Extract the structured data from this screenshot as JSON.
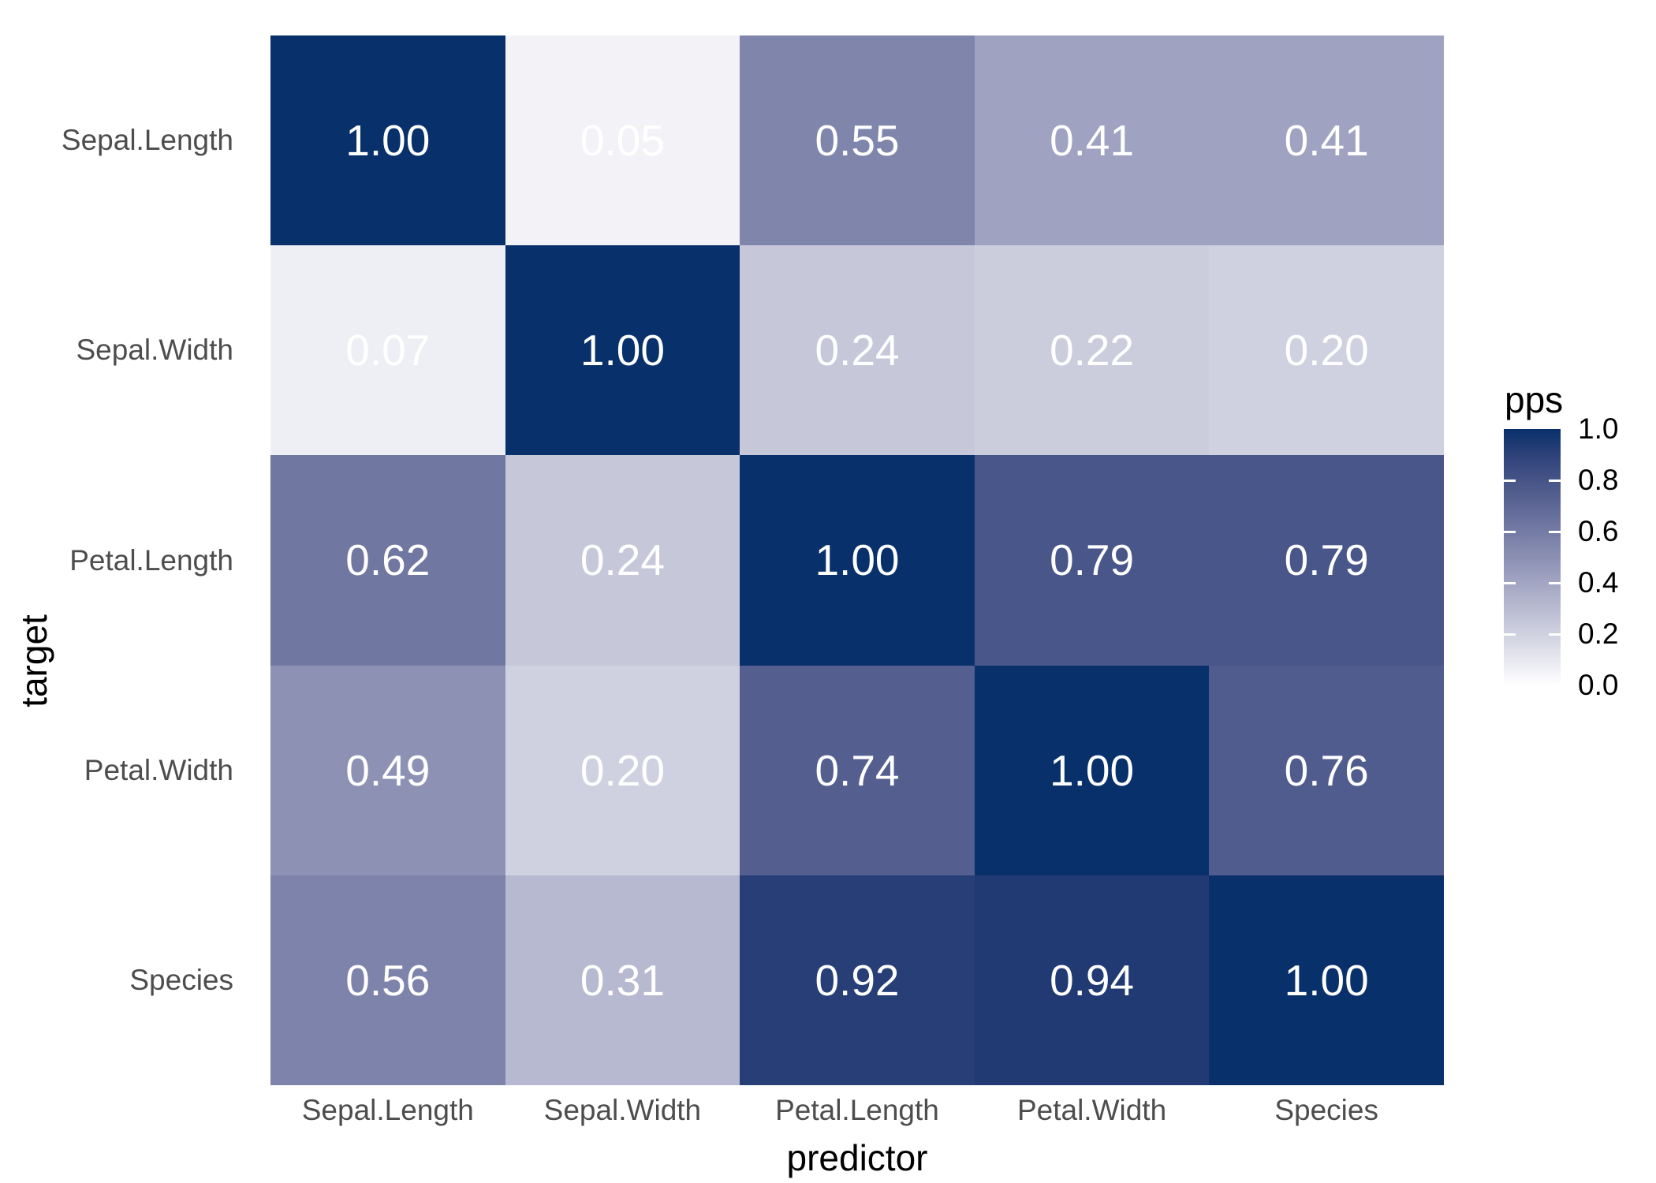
{
  "chart_data": {
    "type": "heatmap",
    "title": "",
    "xlabel": "predictor",
    "ylabel": "target",
    "rows": [
      "Sepal.Length",
      "Sepal.Width",
      "Petal.Length",
      "Petal.Width",
      "Species"
    ],
    "columns": [
      "Sepal.Length",
      "Sepal.Width",
      "Petal.Length",
      "Petal.Width",
      "Species"
    ],
    "values": [
      [
        1.0,
        0.05,
        0.55,
        0.41,
        0.41
      ],
      [
        0.07,
        1.0,
        0.24,
        0.22,
        0.2
      ],
      [
        0.62,
        0.24,
        1.0,
        0.79,
        0.79
      ],
      [
        0.49,
        0.2,
        0.74,
        1.0,
        0.76
      ],
      [
        0.56,
        0.31,
        0.92,
        0.94,
        1.0
      ]
    ],
    "value_decimals": 2,
    "legend": {
      "title": "pps",
      "position": "right",
      "tick_labels": [
        "1.0",
        "0.8",
        "0.6",
        "0.4",
        "0.2",
        "0.0"
      ],
      "tick_values": [
        1.0,
        0.8,
        0.6,
        0.4,
        0.2,
        0.0
      ],
      "range": [
        0,
        1
      ]
    },
    "colors": {
      "low": "#FFFFFF",
      "high": "#08306B",
      "interpolation": "lab",
      "cell_text": "#FFFFFF",
      "axis_text": "#4D4D4D",
      "axis_title": "#000000"
    },
    "grid": false
  }
}
